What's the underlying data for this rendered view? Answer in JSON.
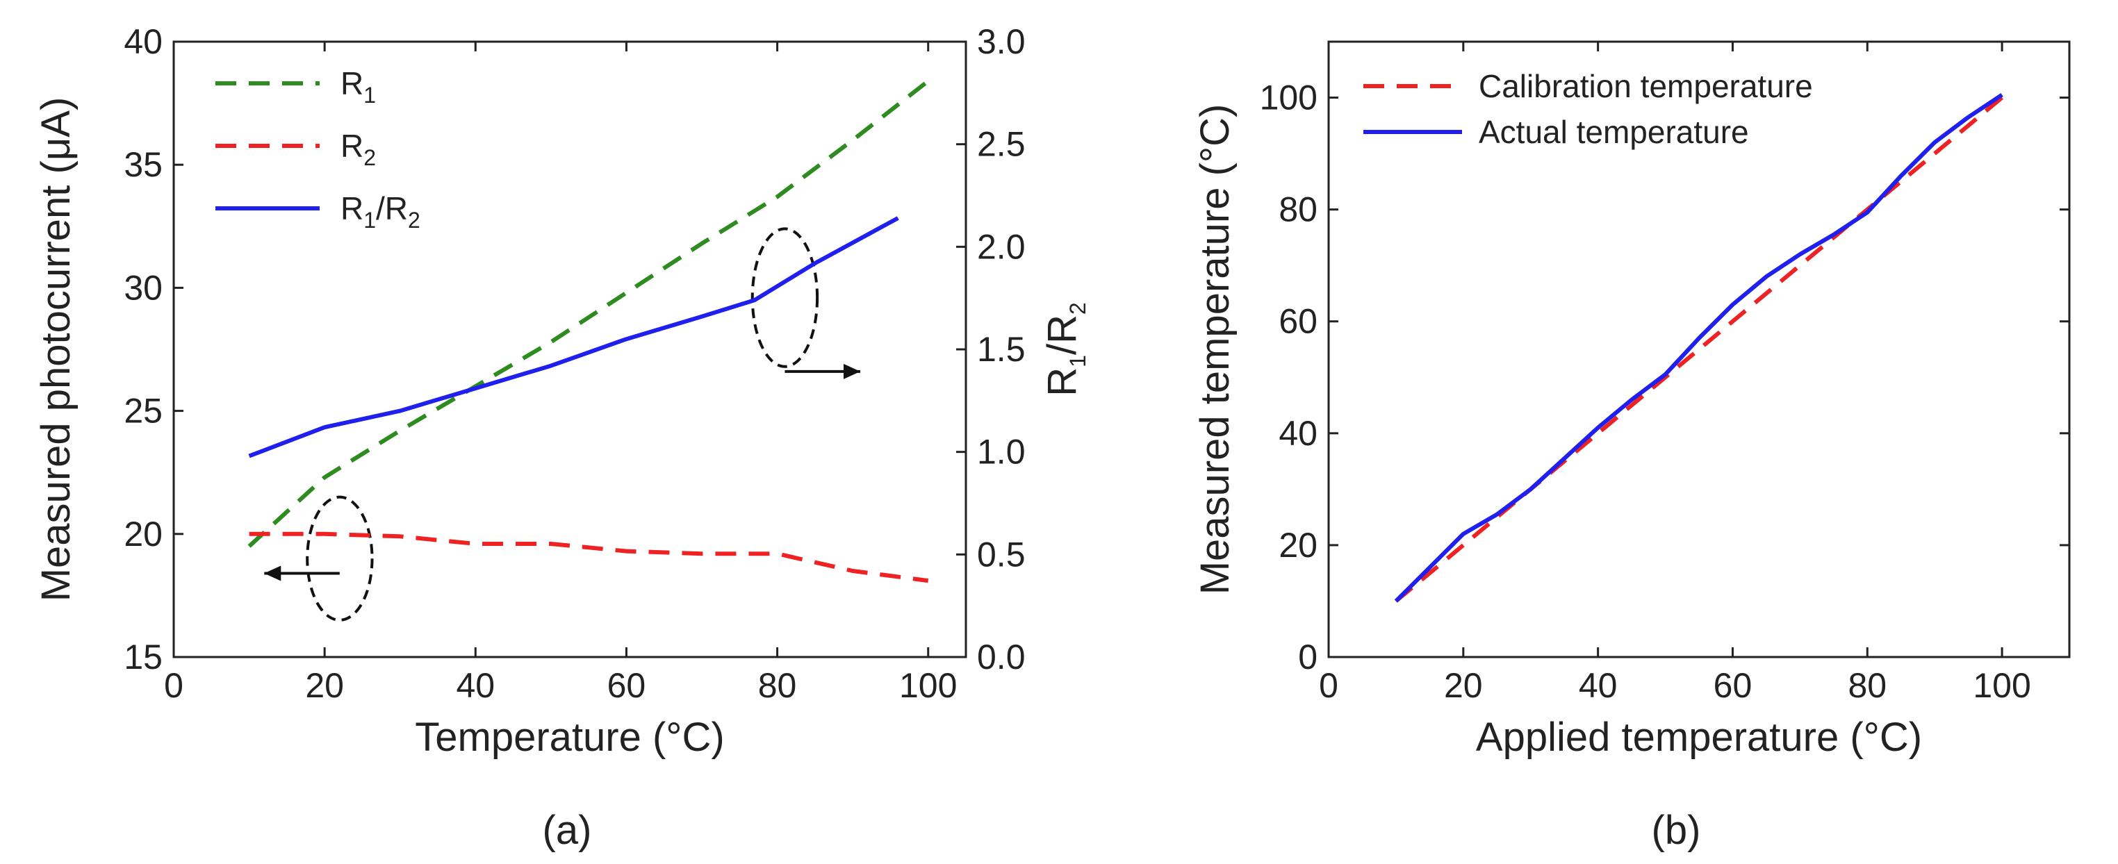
{
  "chart_data": [
    {
      "type": "line",
      "panel_label": "(a)",
      "xlabel": "Temperature (°C)",
      "ylabel": "Measured photocurrent (μA)",
      "ylabel_right": {
        "main": "R",
        "sub1": "1",
        "slash": "/R",
        "sub2": "2"
      },
      "xlim": [
        0,
        105
      ],
      "ylim": [
        15,
        40
      ],
      "ylim_right": [
        0,
        3
      ],
      "xticks": [
        0,
        20,
        40,
        60,
        80,
        100
      ],
      "xtick_labels": [
        "0",
        "20",
        "40",
        "60",
        "80",
        "100"
      ],
      "yticks": [
        15,
        20,
        25,
        30,
        35,
        40
      ],
      "ytick_labels": [
        "15",
        "20",
        "25",
        "30",
        "35",
        "40"
      ],
      "yticks_right": [
        0,
        0.5,
        1,
        1.5,
        2,
        2.5,
        3
      ],
      "ytick_labels_right": [
        "0.0",
        "0.5",
        "1.0",
        "1.5",
        "2.0",
        "2.5",
        "3.0"
      ],
      "grid": false,
      "legend_position": "top-left",
      "series": [
        {
          "name": "R1",
          "label": {
            "main": "R",
            "sub": "1"
          },
          "axis": "left",
          "color": "#2e8b1f",
          "style": "dashed",
          "x": [
            10,
            20,
            30,
            40,
            50,
            60,
            70,
            80,
            90,
            100
          ],
          "y": [
            19.5,
            22.3,
            24.2,
            26.0,
            27.8,
            29.8,
            31.8,
            33.7,
            36.0,
            38.4
          ]
        },
        {
          "name": "R2",
          "label": {
            "main": "R",
            "sub": "2"
          },
          "axis": "left",
          "color": "#ee2222",
          "style": "dashed",
          "x": [
            10,
            20,
            30,
            40,
            50,
            60,
            70,
            80,
            90,
            100
          ],
          "y": [
            20.0,
            20.0,
            19.9,
            19.6,
            19.6,
            19.3,
            19.2,
            19.2,
            18.5,
            18.1
          ]
        },
        {
          "name": "R1/R2",
          "label": {
            "main": "R",
            "sub": "1",
            "slash": "/R",
            "sub2": "2"
          },
          "axis": "right",
          "color": "#1f1fee",
          "style": "solid",
          "x": [
            10,
            20,
            30,
            40,
            50,
            60,
            70,
            77,
            85,
            96
          ],
          "y": [
            0.98,
            1.12,
            1.2,
            1.31,
            1.42,
            1.55,
            1.66,
            1.74,
            1.92,
            2.14
          ]
        }
      ],
      "annotations": [
        {
          "type": "ellipse-arrow",
          "cx": 22,
          "cy": 19.0,
          "rx": 4.3,
          "ry": 2.5,
          "arrow_from": [
            22,
            18.4
          ],
          "arrow_to": [
            12,
            18.4
          ],
          "direction": "left"
        },
        {
          "type": "ellipse-arrow",
          "cx": 81,
          "cy": 29.6,
          "rx": 4.3,
          "ry": 2.8,
          "arrow_from": [
            81,
            26.6
          ],
          "arrow_to": [
            91,
            26.6
          ],
          "direction": "right"
        }
      ]
    },
    {
      "type": "line",
      "panel_label": "(b)",
      "xlabel": "Applied temperature (°C)",
      "ylabel": "Measured temperature (°C)",
      "xlim": [
        0,
        110
      ],
      "ylim": [
        0,
        110
      ],
      "xticks": [
        0,
        20,
        40,
        60,
        80,
        100
      ],
      "xtick_labels": [
        "0",
        "20",
        "40",
        "60",
        "80",
        "100"
      ],
      "yticks": [
        0,
        20,
        40,
        60,
        80,
        100
      ],
      "ytick_labels": [
        "0",
        "20",
        "40",
        "60",
        "80",
        "100"
      ],
      "grid": false,
      "legend_position": "top-left",
      "series": [
        {
          "name": "Calibration temperature",
          "color": "#ee2222",
          "style": "dashed",
          "x": [
            10,
            100
          ],
          "y": [
            10,
            100
          ]
        },
        {
          "name": "Actual temperature",
          "color": "#1f1fee",
          "style": "solid",
          "x": [
            10,
            15,
            20,
            25,
            30,
            35,
            40,
            45,
            50,
            55,
            60,
            65,
            70,
            75,
            80,
            85,
            90,
            95,
            100
          ],
          "y": [
            10,
            16,
            22,
            25.5,
            30,
            35.5,
            41,
            46,
            50.5,
            57,
            63,
            68,
            72,
            75.5,
            79.5,
            86,
            92,
            96.5,
            100.5
          ]
        }
      ]
    }
  ]
}
